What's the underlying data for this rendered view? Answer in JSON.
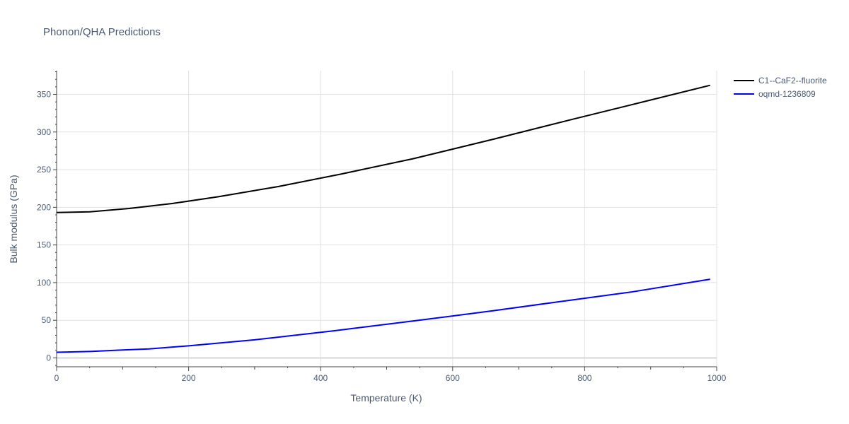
{
  "chart_data": {
    "type": "line",
    "title": "Phonon/QHA Predictions",
    "xlabel": "Temperature (K)",
    "ylabel": "Bulk modulus (GPa)",
    "xlim": [
      0,
      1000
    ],
    "ylim": [
      -12,
      380
    ],
    "x_ticks": [
      0,
      200,
      400,
      600,
      800,
      1000
    ],
    "y_ticks": [
      0,
      50,
      100,
      150,
      200,
      250,
      300,
      350
    ],
    "grid": true,
    "legend_position": "top-right",
    "series": [
      {
        "name": "C1--CaF2--fluorite",
        "color": "#000000",
        "x": [
          0,
          50,
          110,
          175,
          245,
          335,
          430,
          540,
          660,
          780,
          900,
          990
        ],
        "y": [
          193,
          194,
          198.5,
          205,
          214,
          227.5,
          244,
          264.5,
          290,
          316.5,
          342.5,
          362
        ]
      },
      {
        "name": "oqmd-1236809",
        "color": "#0000ff",
        "x": [
          0,
          50,
          100,
          140,
          200,
          300,
          420,
          540,
          660,
          760,
          870,
          990
        ],
        "y": [
          7.5,
          8.5,
          10.5,
          12,
          16,
          24,
          36,
          49,
          62.5,
          74.5,
          87.5,
          104.5
        ]
      }
    ]
  }
}
